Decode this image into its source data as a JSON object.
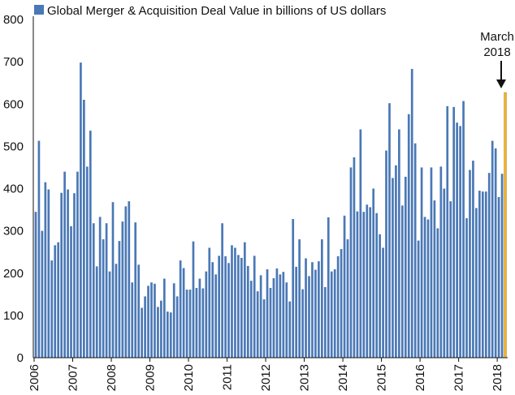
{
  "chart_data": {
    "type": "bar",
    "title": "Global Merger & Acquisition Deal Value in billions of US dollars",
    "legend": "Global Merger & Acquisition Deal Value in billions of US dollars",
    "legend_position": "top-left",
    "xlabel": "",
    "ylabel": "",
    "ylim": [
      0,
      800
    ],
    "yticks": [
      0,
      100,
      200,
      300,
      400,
      500,
      600,
      700,
      800
    ],
    "xticks": [
      "2006",
      "2007",
      "2008",
      "2009",
      "2010",
      "2011",
      "2012",
      "2013",
      "2014",
      "2015",
      "2016",
      "2017",
      "2018"
    ],
    "grid": false,
    "start": "2006-01",
    "annotation": {
      "lines": [
        "March",
        "2018"
      ],
      "target": "2018-03"
    },
    "colors": {
      "bar": "#4a78b6",
      "highlight": "#f0b42b",
      "axis": "#111111"
    },
    "values": [
      345,
      513,
      300,
      415,
      398,
      230,
      266,
      273,
      390,
      440,
      398,
      311,
      389,
      440,
      698,
      610,
      452,
      537,
      318,
      216,
      333,
      280,
      318,
      204,
      368,
      222,
      276,
      322,
      358,
      370,
      178,
      320,
      220,
      118,
      145,
      170,
      178,
      175,
      120,
      135,
      187,
      109,
      107,
      176,
      145,
      230,
      212,
      161,
      161,
      275,
      165,
      187,
      164,
      204,
      260,
      226,
      197,
      241,
      318,
      240,
      224,
      266,
      260,
      243,
      236,
      273,
      217,
      182,
      241,
      157,
      195,
      138,
      209,
      165,
      188,
      211,
      197,
      203,
      178,
      133,
      328,
      215,
      280,
      162,
      235,
      193,
      226,
      208,
      228,
      280,
      167,
      332,
      204,
      209,
      240,
      257,
      336,
      280,
      450,
      474,
      346,
      540,
      345,
      362,
      356,
      400,
      342,
      292,
      260,
      490,
      602,
      425,
      455,
      540,
      360,
      428,
      576,
      683,
      507,
      277,
      450,
      333,
      327,
      450,
      372,
      306,
      452,
      400,
      595,
      370,
      593,
      556,
      548,
      607,
      330,
      444,
      466,
      354,
      395,
      393,
      393,
      437,
      513,
      495,
      380,
      435,
      627
    ]
  }
}
